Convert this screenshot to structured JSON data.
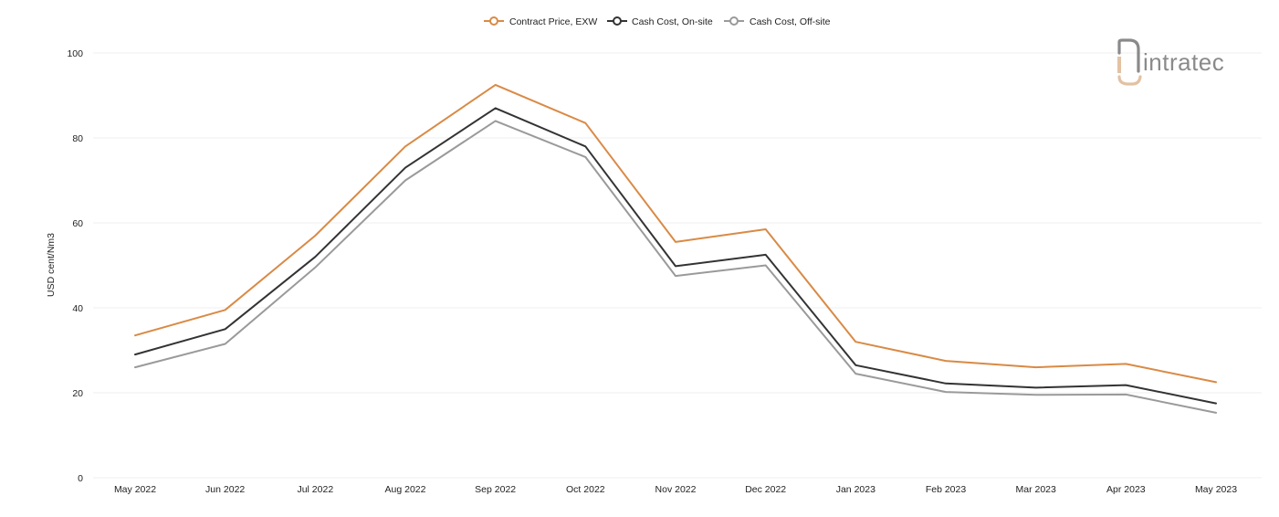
{
  "chart_data": {
    "type": "line",
    "title": "",
    "xlabel": "",
    "ylabel": "USD cent/Nm3",
    "ylim": [
      0,
      100
    ],
    "yticks": [
      0,
      20,
      40,
      60,
      80,
      100
    ],
    "grid": true,
    "legend_position": "top-center",
    "categories": [
      "May 2022",
      "Jun 2022",
      "Jul 2022",
      "Aug 2022",
      "Sep 2022",
      "Oct 2022",
      "Nov 2022",
      "Dec 2022",
      "Jan 2023",
      "Feb 2023",
      "Mar 2023",
      "Apr 2023",
      "May 2023"
    ],
    "series": [
      {
        "name": "Contract Price, EXW",
        "color": "#d98a45",
        "values": [
          33.5,
          39.5,
          57.0,
          78.0,
          92.5,
          83.5,
          55.5,
          58.5,
          32.0,
          27.5,
          26.0,
          26.8,
          22.5
        ]
      },
      {
        "name": "Cash Cost, On-site",
        "color": "#333333",
        "values": [
          29.0,
          35.0,
          52.0,
          73.0,
          87.0,
          78.0,
          49.8,
          52.5,
          26.5,
          22.2,
          21.2,
          21.8,
          17.5
        ]
      },
      {
        "name": "Cash Cost, Off-site",
        "color": "#9a9a9a",
        "values": [
          26.0,
          31.5,
          49.5,
          70.0,
          84.0,
          75.5,
          47.5,
          50.0,
          24.5,
          20.2,
          19.5,
          19.6,
          15.3
        ]
      }
    ]
  },
  "logo": {
    "text": "intratec",
    "color": "#8a8a8a",
    "accent": "#e2c2a4"
  }
}
